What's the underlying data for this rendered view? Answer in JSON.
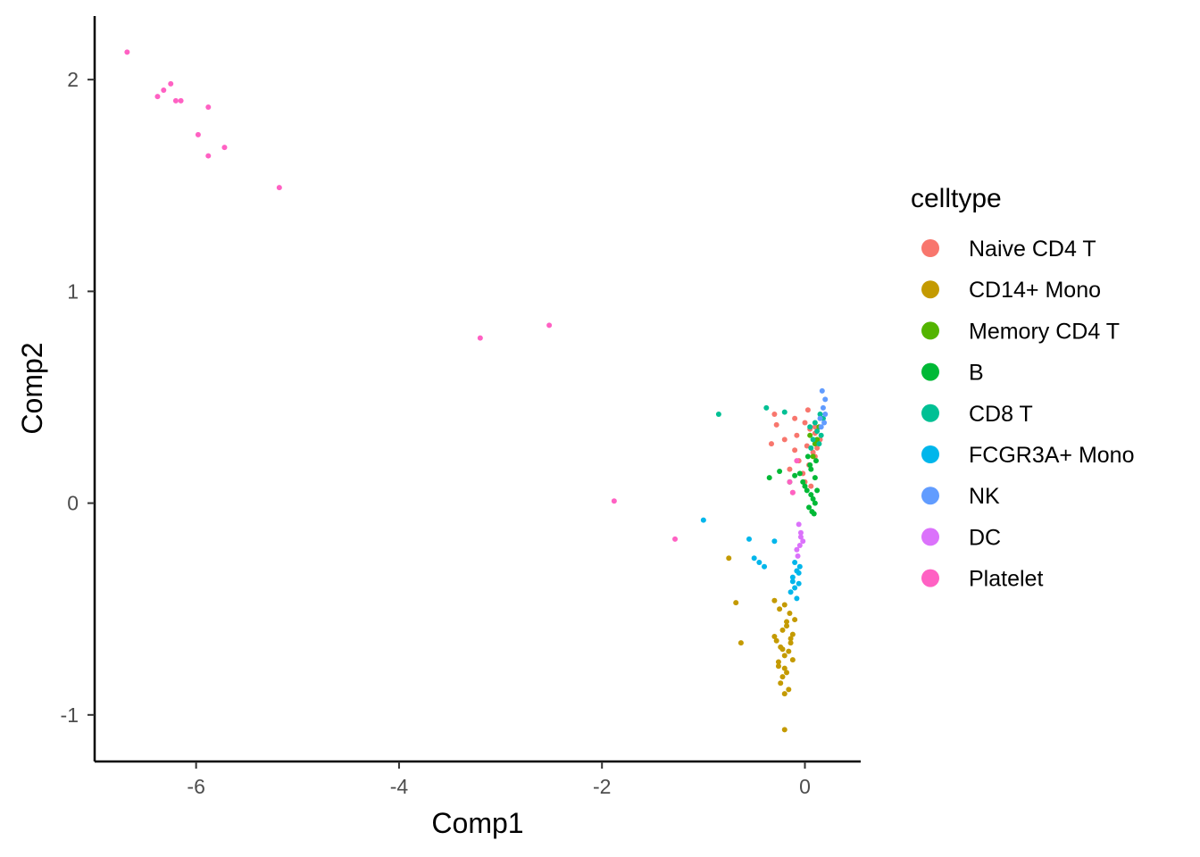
{
  "chart_data": {
    "type": "scatter",
    "title": "",
    "xlabel": "Comp1",
    "ylabel": "Comp2",
    "xlim": [
      -7,
      0.55
    ],
    "ylim": [
      -1.22,
      2.3
    ],
    "x_ticks": [
      -6,
      -4,
      -2,
      0
    ],
    "y_ticks": [
      2,
      1,
      0,
      -1
    ],
    "x_tick_labels": [
      "-6",
      "-4",
      "-2",
      "0"
    ],
    "y_tick_labels": [
      "2",
      "1",
      "0",
      "-1"
    ],
    "grid": false,
    "legend_title": "celltype",
    "legend_position": "right",
    "series": [
      {
        "name": "Naive CD4 T",
        "color": "#F8766D",
        "x": [
          -0.3,
          -0.28,
          -0.1,
          0.0,
          0.05,
          0.1,
          -0.33,
          -0.2,
          -0.1,
          0.02,
          0.1,
          0.15,
          -0.06,
          0.04,
          0.08,
          -0.02,
          0.12,
          -0.15,
          0.06,
          -0.08,
          0.0,
          0.1,
          -0.12,
          0.03
        ],
        "y": [
          0.42,
          0.37,
          0.4,
          0.38,
          0.35,
          0.33,
          0.28,
          0.3,
          0.25,
          0.27,
          0.22,
          0.3,
          0.2,
          0.18,
          0.24,
          0.14,
          0.26,
          0.16,
          0.08,
          0.32,
          0.1,
          0.36,
          0.05,
          0.44
        ]
      },
      {
        "name": "CD14+ Mono",
        "color": "#C49A00",
        "x": [
          -0.75,
          -0.68,
          -0.63,
          -0.3,
          -0.25,
          -0.2,
          -0.15,
          -0.1,
          -0.22,
          -0.18,
          -0.12,
          -0.28,
          -0.24,
          -0.16,
          -0.2,
          -0.14,
          -0.26,
          -0.2,
          -0.18,
          -0.22,
          -0.12,
          -0.3,
          -0.24,
          -0.16,
          -0.2,
          -0.18,
          -0.22,
          -0.26,
          -0.14,
          -0.2
        ],
        "y": [
          -0.26,
          -0.47,
          -0.66,
          -0.46,
          -0.5,
          -0.48,
          -0.52,
          -0.55,
          -0.6,
          -0.58,
          -0.62,
          -0.65,
          -0.68,
          -0.7,
          -0.72,
          -0.66,
          -0.75,
          -0.78,
          -0.8,
          -0.82,
          -0.74,
          -0.63,
          -0.85,
          -0.88,
          -0.9,
          -0.56,
          -0.69,
          -0.77,
          -0.64,
          -1.07
        ]
      },
      {
        "name": "Memory CD4 T",
        "color": "#53B400",
        "x": [
          0.05,
          0.1,
          0.14,
          0.08,
          0.12
        ],
        "y": [
          0.32,
          0.28,
          0.36,
          0.22,
          0.3
        ]
      },
      {
        "name": "B",
        "color": "#00B936",
        "x": [
          -0.35,
          -0.25,
          -0.15,
          -0.05,
          0.05,
          0.1,
          0.12,
          0.0,
          -0.1,
          0.06,
          0.08,
          0.1,
          0.04,
          0.02,
          0.07,
          -0.02,
          0.09,
          0.06,
          0.11,
          0.03
        ],
        "y": [
          0.12,
          0.15,
          0.1,
          0.14,
          0.18,
          0.12,
          0.06,
          0.08,
          0.13,
          0.04,
          0.02,
          0.0,
          -0.02,
          0.06,
          -0.04,
          0.1,
          -0.05,
          0.16,
          0.2,
          0.22
        ]
      },
      {
        "name": "CD8 T",
        "color": "#00C094",
        "x": [
          -0.85,
          -0.38,
          -0.2,
          0.05,
          0.1,
          0.15,
          0.18,
          0.12,
          0.08,
          0.14,
          0.06,
          0.16
        ],
        "y": [
          0.42,
          0.45,
          0.43,
          0.36,
          0.38,
          0.42,
          0.4,
          0.34,
          0.3,
          0.28,
          0.26,
          0.32
        ]
      },
      {
        "name": "FCGR3A+ Mono",
        "color": "#00B6EB",
        "x": [
          -1.0,
          -0.55,
          -0.5,
          -0.45,
          -0.4,
          -0.3,
          -0.1,
          -0.05,
          -0.08,
          -0.12,
          -0.06,
          -0.1,
          -0.14,
          -0.08,
          -0.06,
          -0.12
        ],
        "y": [
          -0.08,
          -0.17,
          -0.26,
          -0.28,
          -0.3,
          -0.18,
          -0.28,
          -0.3,
          -0.32,
          -0.35,
          -0.38,
          -0.4,
          -0.42,
          -0.45,
          -0.33,
          -0.37
        ]
      },
      {
        "name": "NK",
        "color": "#619CFF",
        "x": [
          0.17,
          0.2,
          0.18,
          0.15,
          0.2,
          0.16,
          0.19
        ],
        "y": [
          0.53,
          0.49,
          0.45,
          0.4,
          0.42,
          0.36,
          0.38
        ]
      },
      {
        "name": "DC",
        "color": "#DB72FB",
        "x": [
          -0.05,
          -0.04,
          -0.08,
          -0.02,
          -0.06,
          -0.07,
          -0.04
        ],
        "y": [
          -0.2,
          -0.16,
          -0.22,
          -0.18,
          -0.1,
          -0.25,
          -0.14
        ]
      },
      {
        "name": "Platelet",
        "color": "#FF61C3",
        "x": [
          -6.68,
          -6.25,
          -6.32,
          -6.38,
          -6.2,
          -6.15,
          -5.88,
          -5.98,
          -5.72,
          -5.88,
          -5.18,
          -3.2,
          -2.52,
          -1.88,
          -1.28,
          -0.12,
          -0.15,
          -0.08
        ],
        "y": [
          2.13,
          1.98,
          1.95,
          1.92,
          1.9,
          1.9,
          1.87,
          1.74,
          1.68,
          1.64,
          1.49,
          0.78,
          0.84,
          0.01,
          -0.17,
          0.05,
          0.1,
          0.2
        ]
      }
    ]
  }
}
